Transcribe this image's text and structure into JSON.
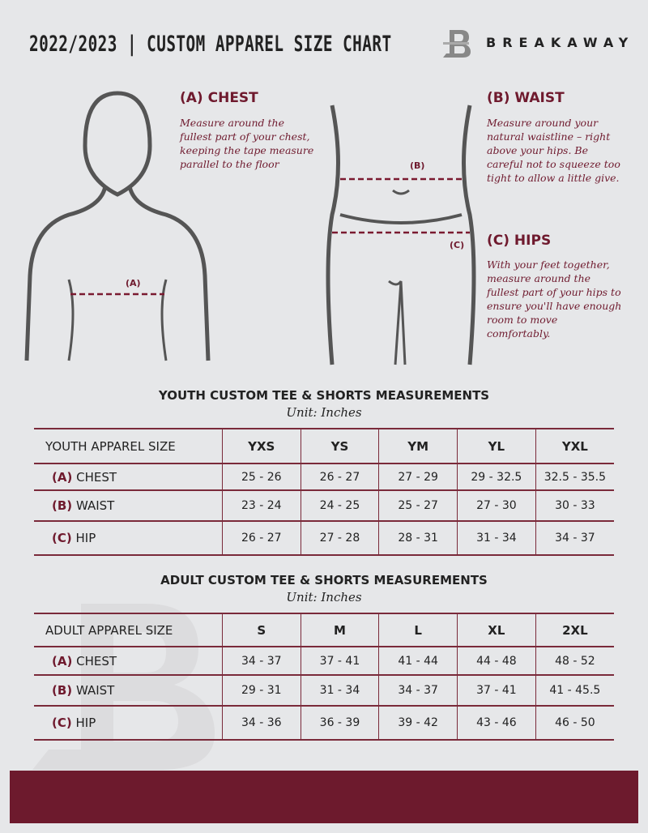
{
  "header": {
    "title": "2022/2023 | CUSTOM APPAREL SIZE CHART",
    "brand": "BREAKAWAY",
    "logo_icon": "breakaway-b-logo"
  },
  "guides": {
    "chest": {
      "title": "(A) CHEST",
      "text": "Measure around the fullest part of your chest, keeping the tape measure parallel to the floor",
      "marker": "(A)"
    },
    "waist": {
      "title": "(B) WAIST",
      "text": "Measure around your natural waistline – right above your hips. Be careful not to squeeze too tight to allow a little give.",
      "marker": "(B)"
    },
    "hips": {
      "title": "(C) HIPS",
      "text": "With your feet together, measure around the fullest part of your hips to ensure you'll have enough room to move comfortably.",
      "marker": "(C)"
    }
  },
  "colors": {
    "accent": "#6f1a2e",
    "background": "#e6e7e9"
  },
  "youth": {
    "title": "YOUTH CUSTOM TEE & SHORTS MEASUREMENTS",
    "unit": "Unit: Inches",
    "header": "YOUTH APPAREL SIZE",
    "sizes": [
      "YXS",
      "YS",
      "YM",
      "YL",
      "YXL"
    ],
    "rows": [
      {
        "code": "(A)",
        "label": "CHEST",
        "values": [
          "25 - 26",
          "26 - 27",
          "27 - 29",
          "29 - 32.5",
          "32.5 - 35.5"
        ]
      },
      {
        "code": "(B)",
        "label": "WAIST",
        "values": [
          "23 - 24",
          "24 - 25",
          "25 - 27",
          "27 - 30",
          "30 - 33"
        ]
      },
      {
        "code": "(C)",
        "label": "HIP",
        "values": [
          "26 - 27",
          "27 - 28",
          "28 - 31",
          "31 - 34",
          "34 - 37"
        ]
      }
    ]
  },
  "adult": {
    "title": "ADULT CUSTOM TEE & SHORTS MEASUREMENTS",
    "unit": "Unit: Inches",
    "header": "ADULT APPAREL SIZE",
    "sizes": [
      "S",
      "M",
      "L",
      "XL",
      "2XL"
    ],
    "rows": [
      {
        "code": "(A)",
        "label": "CHEST",
        "values": [
          "34 - 37",
          "37 - 41",
          "41 - 44",
          "44 - 48",
          "48 - 52"
        ]
      },
      {
        "code": "(B)",
        "label": "WAIST",
        "values": [
          "29 - 31",
          "31 - 34",
          "34 - 37",
          "37 - 41",
          "41 - 45.5"
        ]
      },
      {
        "code": "(C)",
        "label": "HIP",
        "values": [
          "34 - 36",
          "36 - 39",
          "39 - 42",
          "43 - 46",
          "46 - 50"
        ]
      }
    ]
  }
}
